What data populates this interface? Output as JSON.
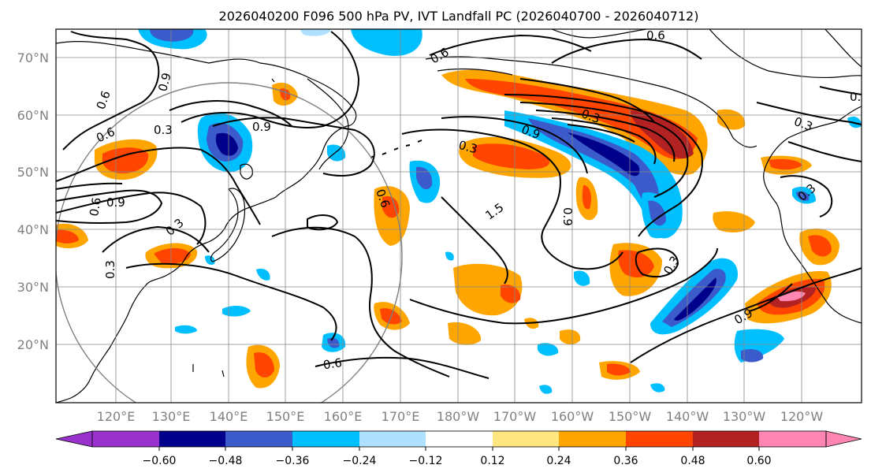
{
  "title": "2026040200 F096 500 hPa PV, IVT Landfall PC (2026040700 - 2026040712)",
  "map": {
    "lat_labels": [
      "70°N",
      "60°N",
      "50°N",
      "40°N",
      "30°N",
      "20°N"
    ],
    "lon_labels": [
      "120°E",
      "130°E",
      "140°E",
      "150°E",
      "160°E",
      "170°E",
      "180°W",
      "170°W",
      "160°W",
      "150°W",
      "140°W",
      "130°W",
      "120°W"
    ],
    "contour_labels": [
      "0.9",
      "0.6",
      "0.6",
      "0.3",
      "0.9",
      "0.9",
      "0.6",
      "0.3",
      "0.3",
      "0.6",
      "0.6",
      "0.3",
      "0.9",
      "0.3",
      "0.6",
      "1.5",
      "0.9",
      "0.3",
      "0.9",
      "0.6",
      "0.3",
      "0.3",
      "0.3"
    ]
  },
  "colorbar": {
    "ticks": [
      "−0.60",
      "−0.48",
      "−0.36",
      "−0.24",
      "−0.12",
      "0.12",
      "0.24",
      "0.36",
      "0.48",
      "0.60"
    ],
    "colors": [
      "#9932CC",
      "#00008B",
      "#3A5BC9",
      "#00BFFF",
      "#B0E0FF",
      "#FFFFFF",
      "#FFE680",
      "#FFA500",
      "#FF4500",
      "#B22222",
      "#FF85B3"
    ]
  }
}
